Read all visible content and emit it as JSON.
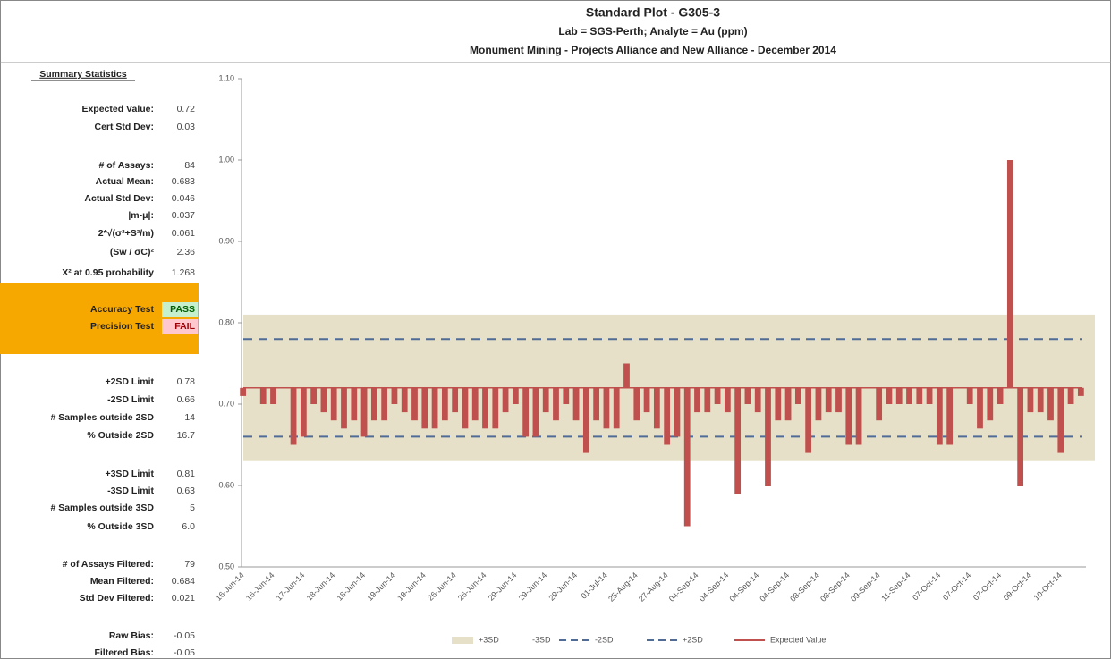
{
  "summary": {
    "heading": "Summary Statistics",
    "rows": [
      {
        "label": "Expected Value:",
        "value": 0.72
      },
      {
        "label": "Cert Std Dev:",
        "value": 0.03
      },
      {
        "label": "# of Assays:",
        "value": 84
      },
      {
        "label": "Actual Mean:",
        "value": 0.683
      },
      {
        "label": "Actual Std Dev:",
        "value": 0.046
      },
      {
        "label": "|m-μ|:",
        "value": 0.037
      },
      {
        "label": "2*√(σ²+S²/m)",
        "value": 0.061
      },
      {
        "label": "(Sw / σC)²",
        "value": 2.36
      },
      {
        "label": "X² at 0.95 probability",
        "value": 1.268
      },
      {
        "label": "Accuracy Test",
        "value": "PASS"
      },
      {
        "label": "Precision Test",
        "value": "FAIL"
      },
      {
        "label": "+2SD Limit",
        "value": 0.78
      },
      {
        "label": "-2SD Limit",
        "value": 0.66
      },
      {
        "label": "# Samples outside 2SD",
        "value": 14
      },
      {
        "label": "% Outside 2SD",
        "value": 16.7
      },
      {
        "label": "+3SD Limit",
        "value": 0.81
      },
      {
        "label": "-3SD Limit",
        "value": 0.63
      },
      {
        "label": "# Samples outside 3SD",
        "value": 5
      },
      {
        "label": "% Outside 3SD",
        "value": "6.0"
      },
      {
        "label": "# of Assays Filtered:",
        "value": 79
      },
      {
        "label": "Mean Filtered:",
        "value": 0.684
      },
      {
        "label": "Std Dev Filtered:",
        "value": 0.021
      },
      {
        "label": "Raw Bias:",
        "value": -0.05
      },
      {
        "label": "Filtered Bias:",
        "value": -0.05
      }
    ]
  },
  "chart_data": {
    "type": "bar",
    "title": "Standard Plot - G305-3",
    "subtitle": "Lab = SGS-Perth; Analyte = Au (ppm)",
    "subtitle2": "Monument Mining - Projects Alliance and New Alliance - December 2014",
    "ylim": [
      0.5,
      1.1
    ],
    "yticks": [
      {
        "value": 0.5,
        "label": "0.50"
      },
      {
        "value": 0.6,
        "label": "0.60"
      },
      {
        "value": 0.7,
        "label": "0.70"
      },
      {
        "value": 0.8,
        "label": "0.80"
      },
      {
        "value": 0.9,
        "label": "0.90"
      },
      {
        "value": 1.0,
        "label": "1.00"
      },
      {
        "value": 1.1,
        "label": "1.10"
      }
    ],
    "limits": [
      {
        "name": "+3SD",
        "value": 0.81,
        "color": "#e6e0c8",
        "style": "band"
      },
      {
        "name": "-3SD",
        "value": 0.63,
        "color": "#ffffff",
        "style": "band"
      },
      {
        "name": "-2SD",
        "value": 0.66,
        "color": "#4f6b96",
        "style": "dash"
      },
      {
        "name": "+2SD",
        "value": 0.78,
        "color": "#4f6b96",
        "style": "dash"
      }
    ],
    "categories": [
      "16-Jun-14",
      null,
      null,
      "16-Jun-14",
      null,
      null,
      "17-Jun-14",
      null,
      null,
      "18-Jun-14",
      null,
      null,
      "18-Jun-14",
      null,
      null,
      "19-Jun-14",
      null,
      null,
      "19-Jun-14",
      null,
      null,
      "26-Jun-14",
      null,
      null,
      "26-Jun-14",
      null,
      null,
      "29-Jun-14",
      null,
      null,
      "29-Jun-14",
      null,
      null,
      "29-Jun-14",
      null,
      null,
      "01-Jul-14",
      null,
      null,
      "25-Aug-14",
      null,
      null,
      "27-Aug-14",
      null,
      null,
      "04-Sep-14",
      null,
      null,
      "04-Sep-14",
      null,
      null,
      "04-Sep-14",
      null,
      null,
      "04-Sep-14",
      null,
      null,
      "08-Sep-14",
      null,
      null,
      "08-Sep-14",
      null,
      null,
      "09-Sep-14",
      null,
      null,
      "11-Sep-14",
      null,
      null,
      "07-Oct-14",
      null,
      null,
      "07-Oct-14",
      null,
      null,
      "07-Oct-14",
      null,
      null,
      "09-Oct-14",
      null,
      null,
      "10-Oct-14",
      null,
      null
    ],
    "series": [
      {
        "name": "Expected Value",
        "color": "#c0504d",
        "base": 0.72,
        "values": [
          0.71,
          0.72,
          0.7,
          0.7,
          0.72,
          0.65,
          0.66,
          0.7,
          0.69,
          0.68,
          0.67,
          0.68,
          0.66,
          0.68,
          0.68,
          0.7,
          0.69,
          0.68,
          0.67,
          0.67,
          0.68,
          0.69,
          0.67,
          0.68,
          0.67,
          0.67,
          0.69,
          0.7,
          0.66,
          0.66,
          0.69,
          0.68,
          0.7,
          0.68,
          0.64,
          0.68,
          0.67,
          0.67,
          0.75,
          0.68,
          0.69,
          0.67,
          0.65,
          0.66,
          0.55,
          0.69,
          0.69,
          0.7,
          0.69,
          0.59,
          0.7,
          0.69,
          0.6,
          0.68,
          0.68,
          0.7,
          0.64,
          0.68,
          0.69,
          0.69,
          0.65,
          0.65,
          0.72,
          0.68,
          0.7,
          0.7,
          0.7,
          0.7,
          0.7,
          0.65,
          0.65,
          0.72,
          0.7,
          0.67,
          0.68,
          0.7,
          1.0,
          0.6,
          0.69,
          0.69,
          0.68,
          0.64,
          0.7,
          0.71
        ]
      }
    ]
  }
}
